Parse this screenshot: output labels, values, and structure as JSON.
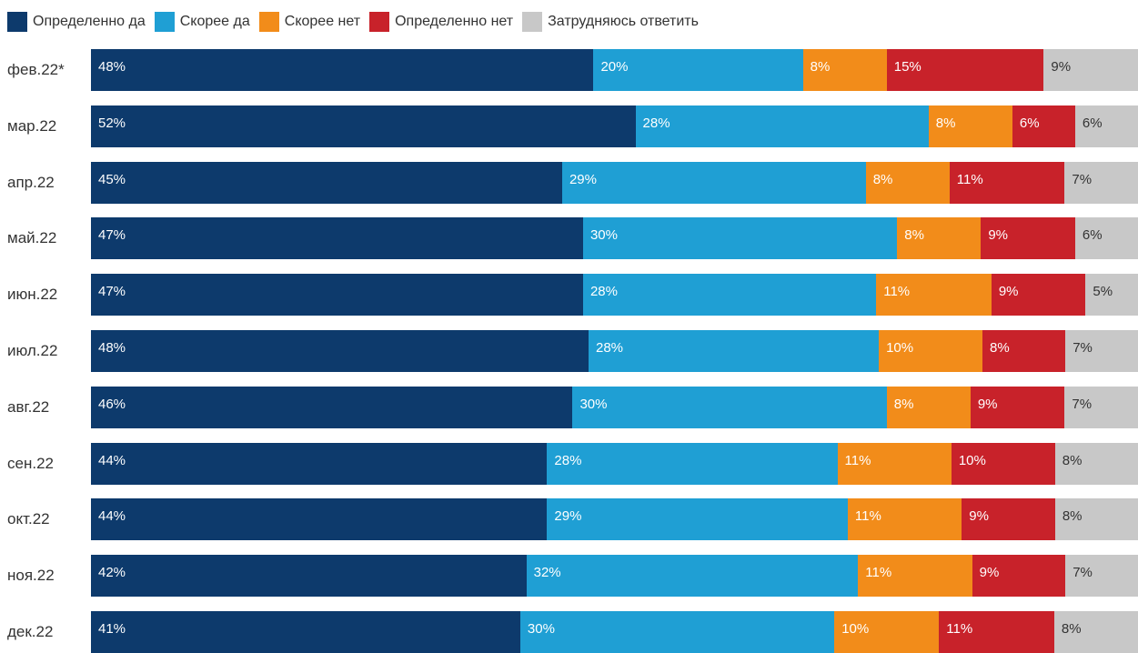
{
  "legend": [
    {
      "label": "Определенно да",
      "color": "#0d3a6c"
    },
    {
      "label": "Скорее да",
      "color": "#1f9fd4"
    },
    {
      "label": "Скорее нет",
      "color": "#f28c1a"
    },
    {
      "label": "Определенно нет",
      "color": "#c8222a"
    },
    {
      "label": "Затрудняюсь ответить",
      "color": "#c8c8c8"
    }
  ],
  "chart_data": {
    "type": "bar",
    "orientation": "horizontal",
    "stacked": true,
    "normalized_100": true,
    "categories": [
      "фев.22*",
      "мар.22",
      "апр.22",
      "май.22",
      "июн.22",
      "июл.22",
      "авг.22",
      "сен.22",
      "окт.22",
      "ноя.22",
      "дек.22"
    ],
    "series": [
      {
        "name": "Определенно да",
        "color": "#0d3a6c",
        "values": [
          48,
          52,
          45,
          47,
          47,
          48,
          46,
          44,
          44,
          42,
          41
        ]
      },
      {
        "name": "Скорее да",
        "color": "#1f9fd4",
        "values": [
          20,
          28,
          29,
          30,
          28,
          28,
          30,
          28,
          29,
          32,
          30
        ]
      },
      {
        "name": "Скорее нет",
        "color": "#f28c1a",
        "values": [
          8,
          8,
          8,
          8,
          11,
          10,
          8,
          11,
          11,
          11,
          10
        ]
      },
      {
        "name": "Определенно нет",
        "color": "#c8222a",
        "values": [
          15,
          6,
          11,
          9,
          9,
          8,
          9,
          10,
          9,
          9,
          11
        ]
      },
      {
        "name": "Затрудняюсь ответить",
        "color": "#c8c8c8",
        "values": [
          9,
          6,
          7,
          6,
          5,
          7,
          7,
          8,
          8,
          7,
          8
        ]
      }
    ],
    "value_suffix": "%",
    "legend_position": "top-left",
    "grid": false,
    "title": "",
    "xlabel": "",
    "ylabel": ""
  }
}
